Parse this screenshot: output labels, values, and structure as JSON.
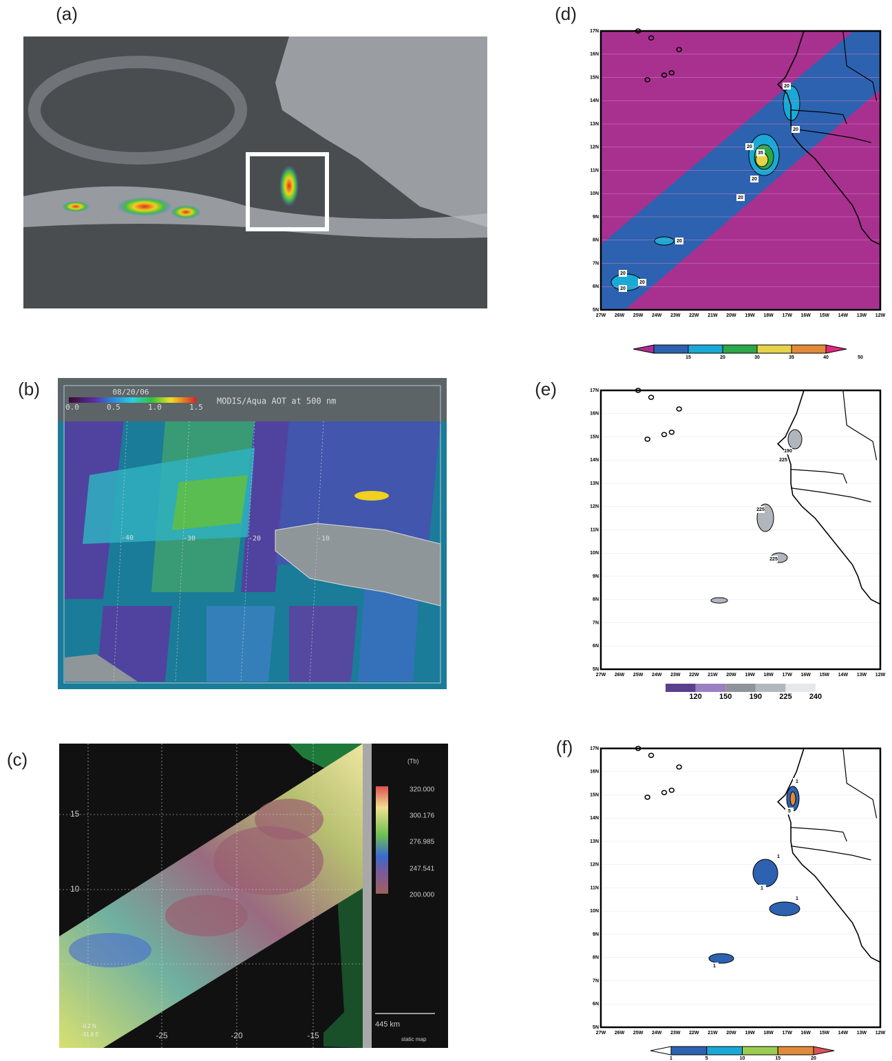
{
  "panels": {
    "a": {
      "label": "(a)"
    },
    "b": {
      "label": "(b)",
      "date": "08/20/06",
      "title": "MODIS/Aqua AOT at 500 nm",
      "colorbar_ticks": [
        "0.0",
        "0.5",
        "1.0",
        "1.5"
      ],
      "lon_labels": [
        "-40",
        "-30",
        "-20",
        "-10"
      ]
    },
    "c": {
      "label": "(c)",
      "colorbar_title": "(Tb)",
      "colorbar_ticks": [
        "320.000",
        "300.176",
        "276.985",
        "247.541",
        "200.000"
      ],
      "x_labels": [
        "-25",
        "-20",
        "-15"
      ],
      "y_labels": [
        "15",
        "10"
      ],
      "corner_labels": [
        "-0.2 N",
        "-31.8 E"
      ],
      "scale": "445 km",
      "footer": "static map"
    },
    "d": {
      "label": "(d)",
      "colorbar_ticks": [
        "15",
        "20",
        "30",
        "35",
        "40",
        "50"
      ],
      "contour_labels": [
        "20",
        "20",
        "20",
        "35",
        "20",
        "20",
        "20",
        "20",
        "20",
        "20"
      ]
    },
    "e": {
      "label": "(e)",
      "colorbar_ticks": [
        "120",
        "150",
        "190",
        "225",
        "240"
      ],
      "contour_labels": [
        "190",
        "225",
        "225",
        "225"
      ]
    },
    "f": {
      "label": "(f)",
      "colorbar_ticks": [
        "1",
        "5",
        "10",
        "15",
        "20"
      ],
      "contour_labels": [
        "1",
        "5",
        "1",
        "1",
        "1",
        "1"
      ]
    },
    "map_axes": {
      "lat_labels": [
        "5N",
        "6N",
        "7N",
        "8N",
        "9N",
        "10N",
        "11N",
        "12N",
        "13N",
        "14N",
        "15N",
        "16N",
        "17N"
      ],
      "lon_labels": [
        "27W",
        "26W",
        "25W",
        "24W",
        "23W",
        "22W",
        "21W",
        "20W",
        "19W",
        "18W",
        "17W",
        "16W",
        "15W",
        "14W",
        "13W",
        "12W"
      ]
    }
  }
}
